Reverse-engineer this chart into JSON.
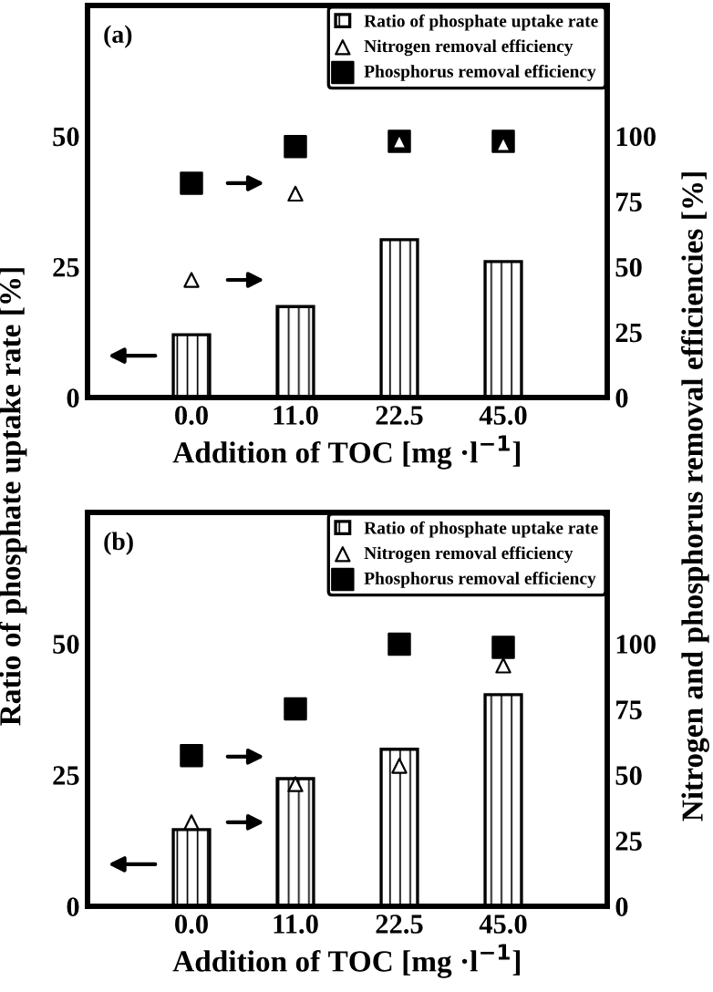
{
  "chart_data": [
    {
      "type": "bar",
      "annotations": [
        "(a)"
      ],
      "xlabel": "Addition of TOC [mg ·l$^{−1}$]",
      "ylabel": "Ratio of phosphate uptake rate [%]",
      "y2label": "Nitrogen and phosphorus removal efficiencies [%]",
      "categories": [
        "0.0",
        "11.0",
        "22.5",
        "45.0"
      ],
      "ylim": [
        0,
        75
      ],
      "yticks": [
        0,
        25,
        50
      ],
      "y2lim": [
        0,
        150
      ],
      "y2ticks": [
        0,
        25,
        50,
        75,
        100
      ],
      "legend": "top right",
      "grid": false,
      "series": [
        {
          "name": "Ratio of phosphate uptake rate",
          "color": "#000000",
          "values": [
            12,
            17.4,
            30.2,
            26
          ]
        },
        {
          "name": "Nitrogen removal efficiency",
          "type": "scatter",
          "axis": "y2",
          "marker": "triangle",
          "color": "#ffffff",
          "values": [
            45,
            78,
            98,
            97
          ]
        },
        {
          "name": "Phosphorus removal efficiency",
          "type": "scatter",
          "axis": "y2",
          "marker": "square",
          "color": "#000000",
          "values": [
            82,
            96,
            98,
            98
          ]
        }
      ]
    },
    {
      "type": "bar",
      "annotations": [
        "(b)"
      ],
      "xlabel": "Addition of TOC [mg ·l$^{−1}$]",
      "categories": [
        "0.0",
        "11.0",
        "22.5",
        "45.0"
      ],
      "ylim": [
        0,
        75
      ],
      "yticks": [
        0,
        25,
        50
      ],
      "y2lim": [
        0,
        150
      ],
      "y2ticks": [
        0,
        25,
        50,
        75,
        100
      ],
      "legend": "top right",
      "grid": false,
      "series": [
        {
          "name": "Ratio of phosphate uptake rate",
          "color": "#000000",
          "values": [
            14.6,
            24.3,
            29.9,
            40.3
          ]
        },
        {
          "name": "Nitrogen removal efficiency",
          "type": "scatter",
          "axis": "y2",
          "marker": "triangle",
          "color": "#ffffff",
          "values": [
            32,
            46.5,
            53.5,
            91.7
          ]
        },
        {
          "name": "Phosphorus removal efficiency",
          "type": "scatter",
          "axis": "y2",
          "marker": "square",
          "color": "#000000",
          "values": [
            57.4,
            75.2,
            99.8,
            98.6
          ]
        }
      ]
    }
  ]
}
